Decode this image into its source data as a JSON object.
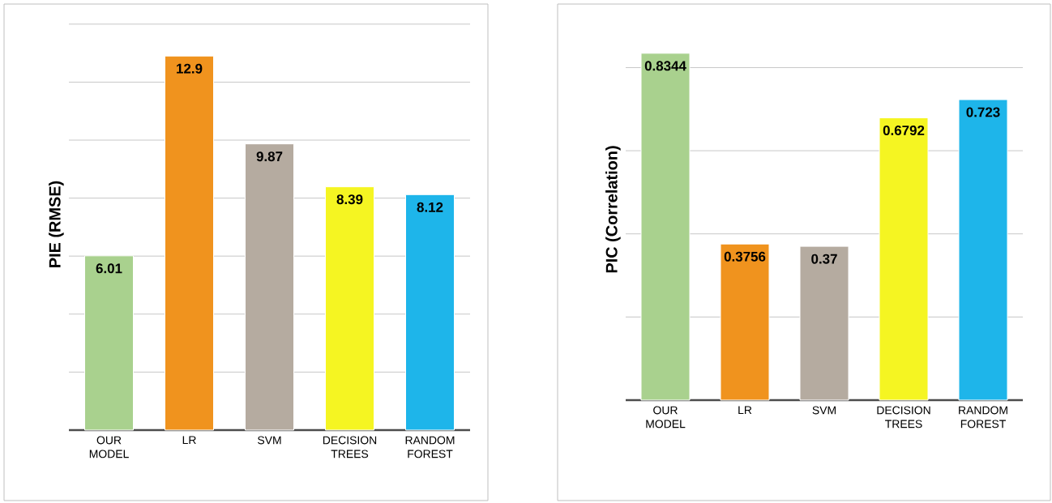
{
  "chart_data": [
    {
      "type": "bar",
      "ylabel": "PIE (RMSE)",
      "categories": [
        "OUR MODEL",
        "LR",
        "SVM",
        "DECISION TREES",
        "RANDOM FOREST"
      ],
      "values": [
        6.01,
        12.9,
        9.87,
        8.39,
        8.12
      ],
      "colors": [
        "#a9d18e",
        "#f0931e",
        "#b5aba0",
        "#f5f522",
        "#1eb5ea"
      ],
      "grid": "y",
      "data_labels": true
    },
    {
      "type": "bar",
      "ylabel": "PIC (Correlation)",
      "categories": [
        "OUR MODEL",
        "LR",
        "SVM",
        "DECISION TREES",
        "RANDOM FOREST"
      ],
      "values": [
        0.8344,
        0.3756,
        0.37,
        0.6792,
        0.723
      ],
      "colors": [
        "#a9d18e",
        "#f0931e",
        "#b5aba0",
        "#f5f522",
        "#1eb5ea"
      ],
      "grid": "y",
      "data_labels": true
    }
  ]
}
